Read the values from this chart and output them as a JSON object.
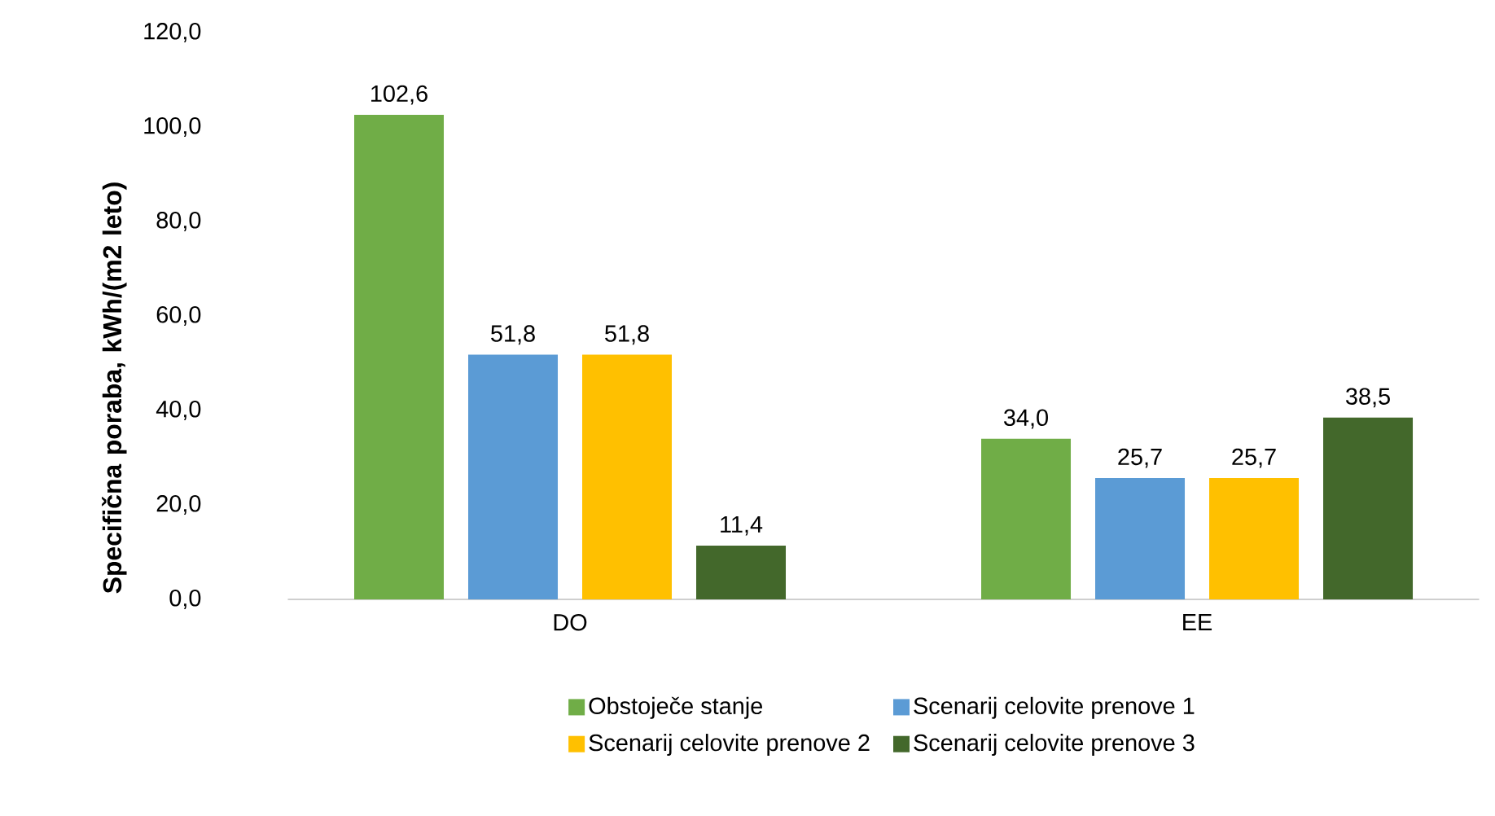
{
  "chart_data": {
    "type": "bar",
    "ylabel": "Specifična poraba, kWh/(m2 leto)",
    "categories": [
      "DO",
      "EE"
    ],
    "series": [
      {
        "name": "Obstoječe stanje",
        "color": "#70ad47",
        "values": [
          102.6,
          34.0
        ],
        "value_labels": [
          "102,6",
          "34,0"
        ]
      },
      {
        "name": "Scenarij celovite prenove 1",
        "color": "#5b9bd5",
        "values": [
          51.8,
          25.7
        ],
        "value_labels": [
          "51,8",
          "25,7"
        ]
      },
      {
        "name": "Scenarij celovite prenove 2",
        "color": "#ffc000",
        "values": [
          51.8,
          25.7
        ],
        "value_labels": [
          "51,8",
          "25,7"
        ]
      },
      {
        "name": "Scenarij celovite prenove 3",
        "color": "#43682b",
        "values": [
          11.4,
          38.5
        ],
        "value_labels": [
          "11,4",
          "38,5"
        ]
      }
    ],
    "ylim": [
      0,
      120
    ],
    "yticks": [
      {
        "value": 0,
        "label": "0,0"
      },
      {
        "value": 20,
        "label": "20,0"
      },
      {
        "value": 40,
        "label": "40,0"
      },
      {
        "value": 60,
        "label": "60,0"
      },
      {
        "value": 80,
        "label": "80,0"
      },
      {
        "value": 100,
        "label": "100,0"
      },
      {
        "value": 120,
        "label": "120,0"
      }
    ],
    "grid": false,
    "legend": "bottom"
  }
}
